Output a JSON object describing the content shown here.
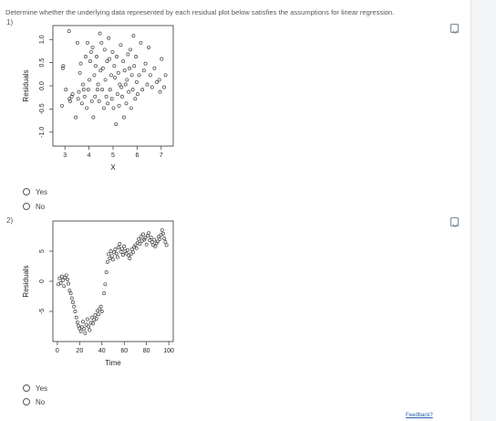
{
  "instructions": "Determine whether the underlying data represented by each residual plot below satisfies the assumptions for linear regression.",
  "questions": [
    {
      "number": "1)",
      "plot": {
        "ylabel": "Residuals",
        "xlabel": "X",
        "y_ticks": [
          "-1.0",
          "-0.5",
          "0.0",
          "0.5",
          "1.0"
        ],
        "x_ticks": [
          "3",
          "4",
          "5",
          "6",
          "7"
        ],
        "xlim": [
          2.5,
          7.5
        ],
        "ylim": [
          -1.3,
          1.3
        ]
      },
      "options": [
        "Yes",
        "No"
      ]
    },
    {
      "number": "2)",
      "plot": {
        "ylabel": "Residuals",
        "xlabel": "Time",
        "y_ticks": [
          "-5",
          "0",
          "5"
        ],
        "x_ticks": [
          "0",
          "20",
          "40",
          "60",
          "80",
          "100"
        ],
        "xlim": [
          -4,
          104
        ],
        "ylim": [
          -10,
          10
        ]
      },
      "options": [
        "Yes",
        "No"
      ]
    }
  ],
  "feedback_label": "Feedback?",
  "colors": {
    "link": "#2a5db0",
    "icon": "#7b8a9a",
    "points": "#444444"
  },
  "chart_data": [
    {
      "type": "scatter",
      "ylabel": "Residuals",
      "xlabel": "X",
      "xlim": [
        2.5,
        7.5
      ],
      "ylim": [
        -1.3,
        1.3
      ],
      "points": [
        [
          2.93,
          0.43
        ],
        [
          2.91,
          0.38
        ],
        [
          2.88,
          -0.43
        ],
        [
          3.04,
          -0.08
        ],
        [
          3.17,
          1.18
        ],
        [
          3.19,
          -0.28
        ],
        [
          3.22,
          -0.33
        ],
        [
          3.28,
          -0.23
        ],
        [
          3.32,
          -0.18
        ],
        [
          3.45,
          -0.68
        ],
        [
          3.52,
          0.93
        ],
        [
          3.55,
          -0.28
        ],
        [
          3.58,
          -0.13
        ],
        [
          3.62,
          0.28
        ],
        [
          3.66,
          0.48
        ],
        [
          3.71,
          -0.38
        ],
        [
          3.75,
          0.03
        ],
        [
          3.78,
          -0.08
        ],
        [
          3.82,
          -0.23
        ],
        [
          3.86,
          0.63
        ],
        [
          3.91,
          -0.48
        ],
        [
          3.94,
          0.93
        ],
        [
          3.97,
          -0.08
        ],
        [
          4.02,
          0.13
        ],
        [
          4.05,
          0.53
        ],
        [
          4.09,
          0.73
        ],
        [
          4.12,
          -0.33
        ],
        [
          4.15,
          0.83
        ],
        [
          4.18,
          -0.68
        ],
        [
          4.22,
          0.23
        ],
        [
          4.25,
          -0.23
        ],
        [
          4.28,
          0.43
        ],
        [
          4.32,
          0.63
        ],
        [
          4.35,
          -0.08
        ],
        [
          4.38,
          0.03
        ],
        [
          4.42,
          -0.33
        ],
        [
          4.45,
          1.13
        ],
        [
          4.48,
          0.33
        ],
        [
          4.52,
          0.93
        ],
        [
          4.55,
          -0.08
        ],
        [
          4.58,
          0.38
        ],
        [
          4.62,
          -0.48
        ],
        [
          4.65,
          0.78
        ],
        [
          4.68,
          0.13
        ],
        [
          4.72,
          -0.23
        ],
        [
          4.75,
          0.53
        ],
        [
          4.78,
          -0.38
        ],
        [
          4.82,
          1.03
        ],
        [
          4.85,
          0.58
        ],
        [
          4.88,
          -0.08
        ],
        [
          4.92,
          0.23
        ],
        [
          4.95,
          -0.28
        ],
        [
          4.98,
          0.73
        ],
        [
          5.02,
          -0.48
        ],
        [
          5.05,
          0.43
        ],
        [
          5.08,
          0.18
        ],
        [
          5.12,
          -0.83
        ],
        [
          5.15,
          0.63
        ],
        [
          5.18,
          -0.18
        ],
        [
          5.22,
          0.28
        ],
        [
          5.25,
          -0.43
        ],
        [
          5.28,
          0.03
        ],
        [
          5.32,
          0.88
        ],
        [
          5.35,
          -0.03
        ],
        [
          5.38,
          -0.23
        ],
        [
          5.42,
          0.53
        ],
        [
          5.45,
          -0.68
        ],
        [
          5.48,
          0.33
        ],
        [
          5.52,
          0.03
        ],
        [
          5.55,
          -0.38
        ],
        [
          5.58,
          0.13
        ],
        [
          5.62,
          0.68
        ],
        [
          5.65,
          -0.13
        ],
        [
          5.68,
          0.38
        ],
        [
          5.72,
          0.78
        ],
        [
          5.75,
          -0.48
        ],
        [
          5.78,
          0.23
        ],
        [
          5.82,
          -0.08
        ],
        [
          5.85,
          1.08
        ],
        [
          5.88,
          0.43
        ],
        [
          5.92,
          -0.28
        ],
        [
          5.95,
          0.63
        ],
        [
          5.98,
          0.08
        ],
        [
          6.02,
          -0.18
        ],
        [
          6.08,
          0.23
        ],
        [
          6.15,
          0.93
        ],
        [
          6.22,
          -0.08
        ],
        [
          6.28,
          0.33
        ],
        [
          6.35,
          0.48
        ],
        [
          6.42,
          0.03
        ],
        [
          6.48,
          0.83
        ],
        [
          6.55,
          0.23
        ],
        [
          6.62,
          -0.03
        ],
        [
          6.72,
          0.38
        ],
        [
          6.82,
          0.08
        ],
        [
          6.92,
          0.13
        ],
        [
          7.02,
          0.58
        ],
        [
          7.12,
          -0.03
        ],
        [
          7.18,
          0.23
        ],
        [
          6.95,
          -0.13
        ]
      ]
    },
    {
      "type": "scatter",
      "ylabel": "Residuals",
      "xlabel": "Time",
      "xlim": [
        -4,
        104
      ],
      "ylim": [
        -10,
        10
      ],
      "points": [
        [
          1,
          -0.5
        ],
        [
          2,
          0.5
        ],
        [
          3,
          -0.3
        ],
        [
          4,
          0.8
        ],
        [
          5,
          0.2
        ],
        [
          6,
          -0.8
        ],
        [
          7,
          0.6
        ],
        [
          8,
          1.0
        ],
        [
          9,
          0.3
        ],
        [
          10,
          -0.4
        ],
        [
          11,
          -1.5
        ],
        [
          12,
          -2.0
        ],
        [
          13,
          -2.8
        ],
        [
          14,
          -3.5
        ],
        [
          15,
          -4.2
        ],
        [
          16,
          -5.0
        ],
        [
          17,
          -6.0
        ],
        [
          18,
          -6.8
        ],
        [
          19,
          -7.4
        ],
        [
          20,
          -7.8
        ],
        [
          21,
          -8.3
        ],
        [
          22,
          -7.6
        ],
        [
          23,
          -6.7
        ],
        [
          24,
          -7.9
        ],
        [
          25,
          -8.6
        ],
        [
          26,
          -7.2
        ],
        [
          27,
          -6.3
        ],
        [
          28,
          -7.5
        ],
        [
          29,
          -8.1
        ],
        [
          30,
          -6.9
        ],
        [
          31,
          -6.0
        ],
        [
          32,
          -7.0
        ],
        [
          33,
          -6.4
        ],
        [
          34,
          -5.6
        ],
        [
          35,
          -6.2
        ],
        [
          36,
          -4.9
        ],
        [
          37,
          -5.5
        ],
        [
          38,
          -4.6
        ],
        [
          39,
          -4.2
        ],
        [
          40,
          -5.0
        ],
        [
          42,
          -2.0
        ],
        [
          43,
          -0.5
        ],
        [
          44,
          1.5
        ],
        [
          45,
          3.2
        ],
        [
          46,
          4.5
        ],
        [
          47,
          3.8
        ],
        [
          48,
          5.0
        ],
        [
          49,
          4.2
        ],
        [
          50,
          3.6
        ],
        [
          51,
          4.8
        ],
        [
          52,
          5.3
        ],
        [
          53,
          4.6
        ],
        [
          54,
          4.0
        ],
        [
          55,
          5.6
        ],
        [
          56,
          6.2
        ],
        [
          57,
          4.9
        ],
        [
          58,
          5.4
        ],
        [
          59,
          4.4
        ],
        [
          60,
          5.8
        ],
        [
          61,
          5.0
        ],
        [
          62,
          4.6
        ],
        [
          63,
          5.2
        ],
        [
          64,
          4.3
        ],
        [
          65,
          3.8
        ],
        [
          66,
          4.5
        ],
        [
          67,
          5.3
        ],
        [
          68,
          4.8
        ],
        [
          69,
          5.7
        ],
        [
          70,
          6.0
        ],
        [
          71,
          5.5
        ],
        [
          72,
          6.4
        ],
        [
          73,
          7.0
        ],
        [
          74,
          6.2
        ],
        [
          75,
          7.4
        ],
        [
          76,
          6.7
        ],
        [
          77,
          7.8
        ],
        [
          78,
          6.9
        ],
        [
          79,
          7.2
        ],
        [
          80,
          6.1
        ],
        [
          81,
          7.6
        ],
        [
          82,
          8.0
        ],
        [
          83,
          6.8
        ],
        [
          84,
          7.3
        ],
        [
          85,
          6.5
        ],
        [
          86,
          6.0
        ],
        [
          87,
          6.9
        ],
        [
          88,
          5.8
        ],
        [
          89,
          6.3
        ],
        [
          90,
          6.6
        ],
        [
          91,
          7.4
        ],
        [
          92,
          7.0
        ],
        [
          93,
          7.7
        ],
        [
          94,
          8.5
        ],
        [
          95,
          7.9
        ],
        [
          96,
          7.1
        ],
        [
          97,
          6.5
        ],
        [
          98,
          6.0
        ]
      ]
    }
  ]
}
